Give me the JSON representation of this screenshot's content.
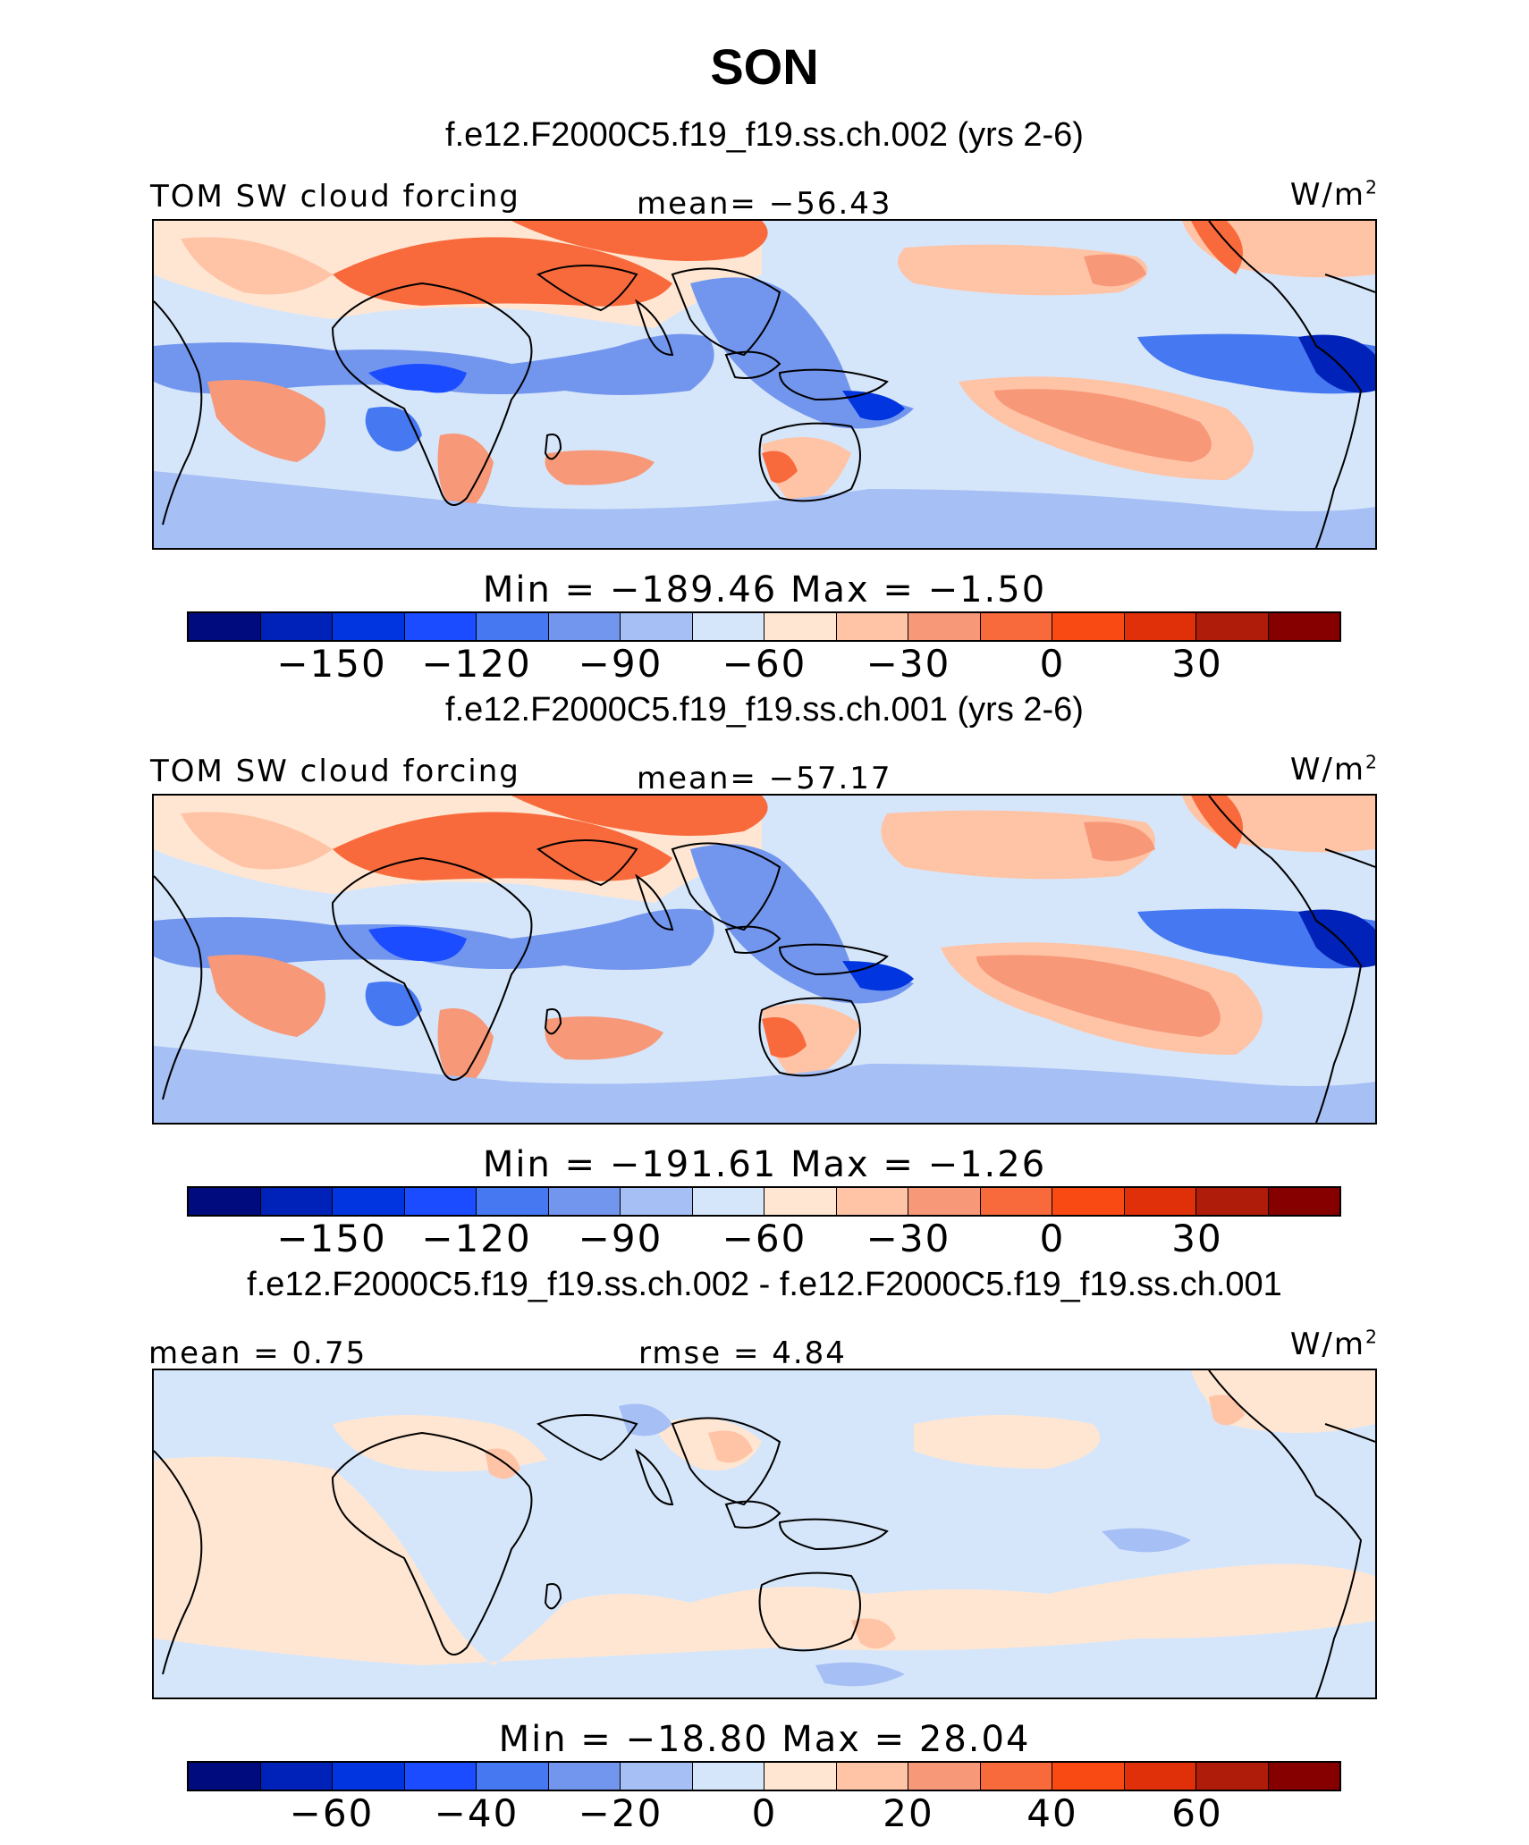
{
  "title": "SON",
  "chart_data": [
    {
      "type": "heatmap",
      "case_title": "f.e12.F2000C5.f19_f19.ss.ch.002 (yrs 2-6)",
      "left_label": "TOM SW cloud forcing",
      "center_label": "mean=  −56.43",
      "units": "W/m",
      "units_sup": "2",
      "stats": "Min  =  −189.46  Max  =   −1.50",
      "colorbar_ticks": [
        "−150",
        "−120",
        "−90",
        "−60",
        "−30",
        "0",
        "30"
      ],
      "colorbar_levels": [
        -180,
        -165,
        -150,
        -135,
        -120,
        -105,
        -90,
        -75,
        -60,
        -45,
        -30,
        -15,
        0,
        15,
        30,
        45
      ],
      "mean": -56.43,
      "min": -189.46,
      "max": -1.5
    },
    {
      "type": "heatmap",
      "case_title": "f.e12.F2000C5.f19_f19.ss.ch.001 (yrs 2-6)",
      "left_label": "TOM SW cloud forcing",
      "center_label": "mean=  −57.17",
      "units": "W/m",
      "units_sup": "2",
      "stats": "Min  =  −191.61  Max  =   −1.26",
      "colorbar_ticks": [
        "−150",
        "−120",
        "−90",
        "−60",
        "−30",
        "0",
        "30"
      ],
      "colorbar_levels": [
        -180,
        -165,
        -150,
        -135,
        -120,
        -105,
        -90,
        -75,
        -60,
        -45,
        -30,
        -15,
        0,
        15,
        30,
        45
      ],
      "mean": -57.17,
      "min": -191.61,
      "max": -1.26
    },
    {
      "type": "heatmap",
      "case_title": "f.e12.F2000C5.f19_f19.ss.ch.002 - f.e12.F2000C5.f19_f19.ss.ch.001",
      "left_label": "mean =    0.75",
      "center_label": "rmse  =    4.84",
      "units": "W/m",
      "units_sup": "2",
      "stats": "Min  =  −18.80  Max  =   28.04",
      "colorbar_ticks": [
        "−60",
        "−40",
        "−20",
        "0",
        "20",
        "40",
        "60"
      ],
      "colorbar_levels": [
        -70,
        -60,
        -50,
        -40,
        -30,
        -20,
        -10,
        0,
        10,
        20,
        30,
        40,
        50,
        60,
        70
      ],
      "mean": 0.75,
      "rmse": 4.84,
      "min": -18.8,
      "max": 28.04
    }
  ],
  "colorbar_colors": [
    "#000c7d",
    "#0022b8",
    "#0035e0",
    "#1c4cff",
    "#4678f2",
    "#7296ee",
    "#a6bff4",
    "#d6e6fa",
    "#ffe6d2",
    "#ffc3a6",
    "#f79878",
    "#f86a3c",
    "#fa4a14",
    "#e0300a",
    "#b01c0a",
    "#870000"
  ]
}
